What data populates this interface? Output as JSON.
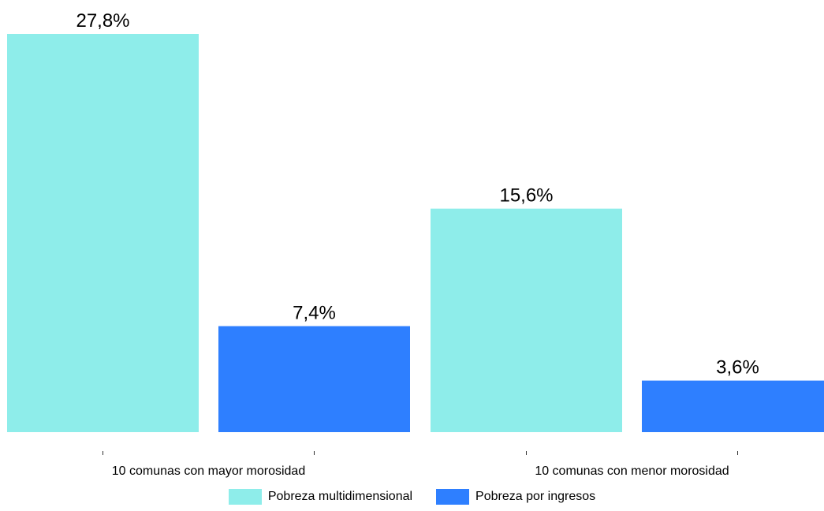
{
  "chart_data": {
    "type": "bar",
    "categories": [
      "10 comunas con mayor morosidad",
      "10 comunas con menor morosidad"
    ],
    "series": [
      {
        "name": "Pobreza multidimensional",
        "values": [
          27.8,
          15.6
        ],
        "labels": [
          "27,8%",
          "15,6%"
        ],
        "color": "#8EEDEA"
      },
      {
        "name": "Pobreza por ingresos",
        "values": [
          7.4,
          3.6
        ],
        "labels": [
          "7,4%",
          "3,6%"
        ],
        "color": "#2E7FFF"
      }
    ],
    "ylim": [
      0,
      27.8
    ],
    "grid": false,
    "legend_position": "bottom"
  }
}
